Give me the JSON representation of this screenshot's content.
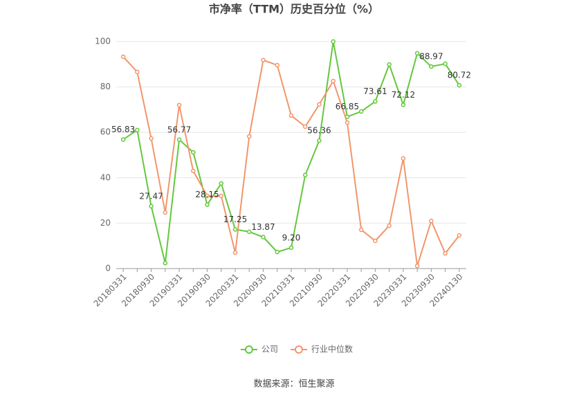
{
  "chart_data": {
    "type": "line",
    "title": "市净率（TTM）历史百分位（%）",
    "source": "数据来源：恒生聚源",
    "categories": [
      "20180331",
      null,
      "20180930",
      null,
      "20190331",
      null,
      "20190930",
      null,
      "20200331",
      null,
      "20200930",
      null,
      "20210331",
      null,
      "20210930",
      null,
      "20220331",
      null,
      "20220930",
      null,
      "20230331",
      null,
      "20230930",
      null,
      "20240130"
    ],
    "series": [
      {
        "name": "公司",
        "color": "#62c83c",
        "values": [
          56.83,
          61,
          27.47,
          2.4,
          56.77,
          51.2,
          28.15,
          37.5,
          17.25,
          16.2,
          13.87,
          7.3,
          9.2,
          41.2,
          56.36,
          100,
          66.85,
          69.2,
          73.61,
          89.9,
          72.12,
          94.8,
          88.97,
          90.2,
          80.72
        ],
        "value_labels": [
          "56.83",
          null,
          "27.47",
          null,
          "56.77",
          null,
          "28.15",
          null,
          "17.25",
          null,
          "13.87",
          null,
          "9.20",
          null,
          "56.36",
          null,
          "66.85",
          null,
          "73.61",
          null,
          "72.12",
          null,
          "88.97",
          null,
          "80.72"
        ]
      },
      {
        "name": "行业中位数",
        "color": "#f2956b",
        "values": [
          93.3,
          86.6,
          57.3,
          24.7,
          72,
          43,
          32,
          32,
          7,
          58.2,
          91.8,
          89.6,
          67.4,
          62.5,
          72.3,
          82.6,
          64.3,
          17.1,
          12.2,
          18.9,
          48.5,
          1.2,
          21,
          6.7,
          14.6
        ]
      }
    ],
    "ylim": [
      0,
      100
    ],
    "yticks": [
      0,
      20,
      40,
      60,
      80,
      100
    ],
    "grid": true,
    "legend": "bottom"
  }
}
